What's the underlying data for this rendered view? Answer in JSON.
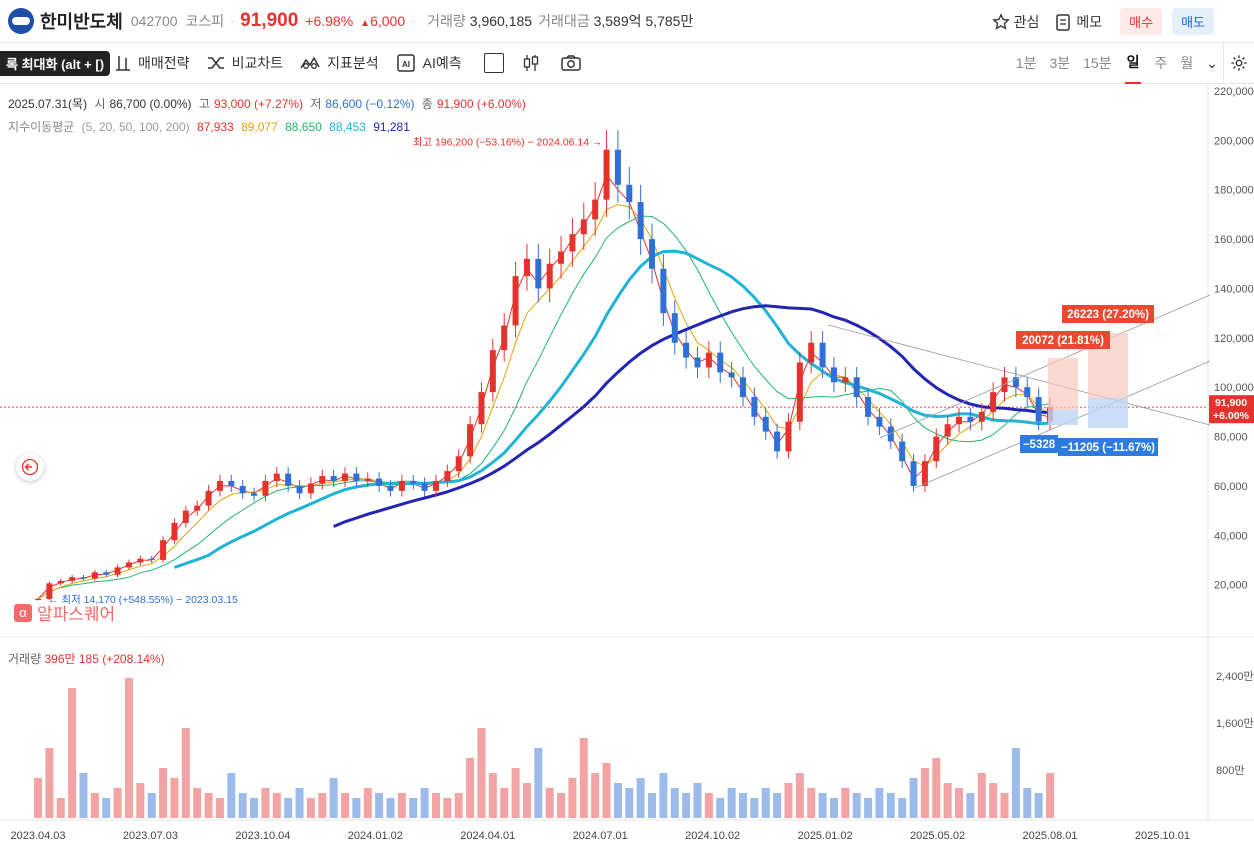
{
  "header": {
    "stock_name": "한미반도체",
    "stock_code": "042700",
    "market": "코스피",
    "price": "91,900",
    "change_pct": "+6.98%",
    "change_amt": "6,000",
    "volume_label": "거래량",
    "volume_value": "3,960,185",
    "amount_label": "거래대금",
    "amount_value": "3,589억 5,785만",
    "watch_label": "관심",
    "memo_label": "메모",
    "buy_label": "매수",
    "sell_label": "매도"
  },
  "toolbar": {
    "maximize_label": "록 최대화 (alt + [)",
    "trade_strategy": "매매전략",
    "compare_chart": "비교차트",
    "indicator_analysis": "지표분석",
    "ai_forecast": "AI예측",
    "periods": [
      "1분",
      "3분",
      "15분",
      "일",
      "주",
      "월"
    ],
    "active_period": "일"
  },
  "legend": {
    "date": "2025.07.31(목)",
    "open_label": "시",
    "open": "86,700 (0.00%)",
    "high_label": "고",
    "high": "93,000 (+7.27%)",
    "low_label": "저",
    "low": "86,600 (−0.12%)",
    "close_label": "종",
    "close": "91,900 (+6.00%)",
    "ma_label": "지수이동평균",
    "ma_params": "(5, 20, 50, 100, 200)",
    "ma_values": [
      "87,933",
      "89,077",
      "88,650",
      "88,453",
      "91,281"
    ]
  },
  "volume_legend": {
    "label": "거래량",
    "value": "396만 185 (+208.14%)"
  },
  "watermark": "알파스퀘어",
  "colors": {
    "up": "#e5322d",
    "down": "#2f6fd6",
    "ma5": "#e5322d",
    "ma20": "#e2a40a",
    "ma50": "#22b573",
    "ma100": "#1fb3d6",
    "ma200": "#2323b4",
    "measure_up": "#e8492f",
    "measure_down": "#2d7bdc"
  },
  "annotations": {
    "high_text": "최고 196,200 (−53.16%) − 2024.06.14",
    "low_text": "최저 14,170 (+548.55%) − 2023.03.15",
    "measure_up1": "20072 (21.81%)",
    "measure_up2": "26223 (27.20%)",
    "measure_down1": "−5328",
    "measure_down2": "−11205 (−11.67%)",
    "current_price_tag": "91,900",
    "current_pct_tag": "+6.00%"
  },
  "chart_data": {
    "type": "line",
    "title": "",
    "price_axis": {
      "ticks": [
        "220,000",
        "200,000",
        "180,000",
        "160,000",
        "140,000",
        "120,000",
        "100,000",
        "80,000",
        "60,000",
        "40,000",
        "20,000"
      ],
      "ylim": [
        0,
        220000
      ]
    },
    "volume_axis": {
      "ticks": [
        "2,400만",
        "1,600만",
        "800만"
      ]
    },
    "x_ticks": [
      "2023.04.03",
      "2023.07.03",
      "2023.10.04",
      "2024.01.02",
      "2024.04.01",
      "2024.07.01",
      "2024.10.02",
      "2025.01.02",
      "2025.05.02",
      "2025.08.01",
      "2025.10.01"
    ],
    "x_tick_index": [
      0,
      13,
      26,
      39,
      52,
      65,
      78,
      91,
      104,
      117,
      130
    ],
    "series": [
      {
        "name": "종가",
        "values": [
          14170,
          20500,
          21500,
          23000,
          22500,
          25000,
          24000,
          27000,
          29000,
          30500,
          30000,
          38000,
          45000,
          50000,
          52000,
          58000,
          62000,
          60000,
          57000,
          56000,
          62000,
          65000,
          60000,
          57000,
          61000,
          64000,
          62000,
          65000,
          62000,
          63000,
          60000,
          58000,
          62000,
          61000,
          58000,
          62000,
          66000,
          72000,
          85000,
          98000,
          115000,
          125000,
          145000,
          152000,
          140000,
          150000,
          155000,
          162000,
          168000,
          176000,
          196200,
          182000,
          175000,
          160000,
          148000,
          130000,
          118000,
          112000,
          108000,
          114000,
          106000,
          104000,
          96000,
          88000,
          82000,
          74000,
          86000,
          110000,
          118000,
          108000,
          102000,
          104000,
          96000,
          88000,
          84000,
          78000,
          70000,
          60000,
          70000,
          80000,
          85000,
          88000,
          86000,
          90000,
          98000,
          104000,
          100000,
          96000,
          86000,
          91900
        ]
      },
      {
        "name": "MA5",
        "values": [
          14170,
          19000,
          20800,
          22200,
          22500,
          24000,
          24300,
          26000,
          28000,
          29800,
          30000,
          35000,
          41000,
          47000,
          50500,
          56000,
          60000,
          60000,
          58000,
          57000,
          60000,
          63000,
          61500,
          59000,
          60500,
          62500,
          62000,
          64000,
          62800,
          62800,
          61000,
          59000,
          61000,
          61000,
          59000,
          61000,
          64000,
          69000,
          79000,
          92000,
          108000,
          120000,
          138000,
          148000,
          142000,
          148000,
          153000,
          160000,
          166000,
          173000,
          186000,
          180000,
          175000,
          163000,
          151000,
          135000,
          122000,
          115000,
          110000,
          112000,
          108000,
          105000,
          98000,
          91000,
          85000,
          77000,
          83000,
          102000,
          114000,
          110000,
          104000,
          104000,
          98000,
          91000,
          86000,
          80000,
          72000,
          63000,
          67000,
          76000,
          82000,
          86000,
          86000,
          89000,
          95000,
          101000,
          100000,
          97000,
          89000,
          87933
        ]
      },
      {
        "name": "MA20",
        "values": [
          14170,
          17000,
          19000,
          20500,
          21500,
          22500,
          23200,
          24500,
          26000,
          27500,
          28500,
          31500,
          35500,
          40500,
          45000,
          50000,
          54000,
          56500,
          57500,
          57500,
          58500,
          60500,
          60500,
          60000,
          60000,
          61000,
          61500,
          62500,
          62500,
          62800,
          62000,
          61000,
          61000,
          61000,
          60500,
          60800,
          62000,
          65000,
          71000,
          80000,
          92000,
          104000,
          118000,
          130000,
          135000,
          140000,
          145000,
          151000,
          157000,
          163000,
          172000,
          174000,
          173000,
          168000,
          160000,
          148000,
          136000,
          126000,
          118000,
          115000,
          111000,
          108000,
          103000,
          97000,
          91000,
          84000,
          83000,
          92000,
          102000,
          106000,
          105000,
          104000,
          100000,
          95000,
          90000,
          85000,
          78000,
          70000,
          68000,
          72000,
          77000,
          81000,
          84000,
          86500,
          90000,
          95000,
          97000,
          97000,
          92000,
          89077
        ]
      }
    ],
    "volume": [
      8,
      14,
      4,
      26,
      9,
      5,
      4,
      6,
      28,
      7,
      5,
      10,
      8,
      18,
      6,
      5,
      4,
      9,
      5,
      4,
      6,
      5,
      4,
      6,
      4,
      5,
      8,
      5,
      4,
      6,
      5,
      4,
      5,
      4,
      6,
      5,
      4,
      5,
      12,
      18,
      9,
      6,
      10,
      7,
      14,
      6,
      5,
      8,
      16,
      9,
      11,
      7,
      6,
      8,
      5,
      9,
      6,
      5,
      7,
      5,
      4,
      6,
      5,
      4,
      6,
      5,
      7,
      9,
      6,
      5,
      4,
      6,
      5,
      4,
      6,
      5,
      4,
      8,
      10,
      12,
      7,
      6,
      5,
      9,
      7,
      5,
      14,
      6,
      5,
      9
    ]
  }
}
